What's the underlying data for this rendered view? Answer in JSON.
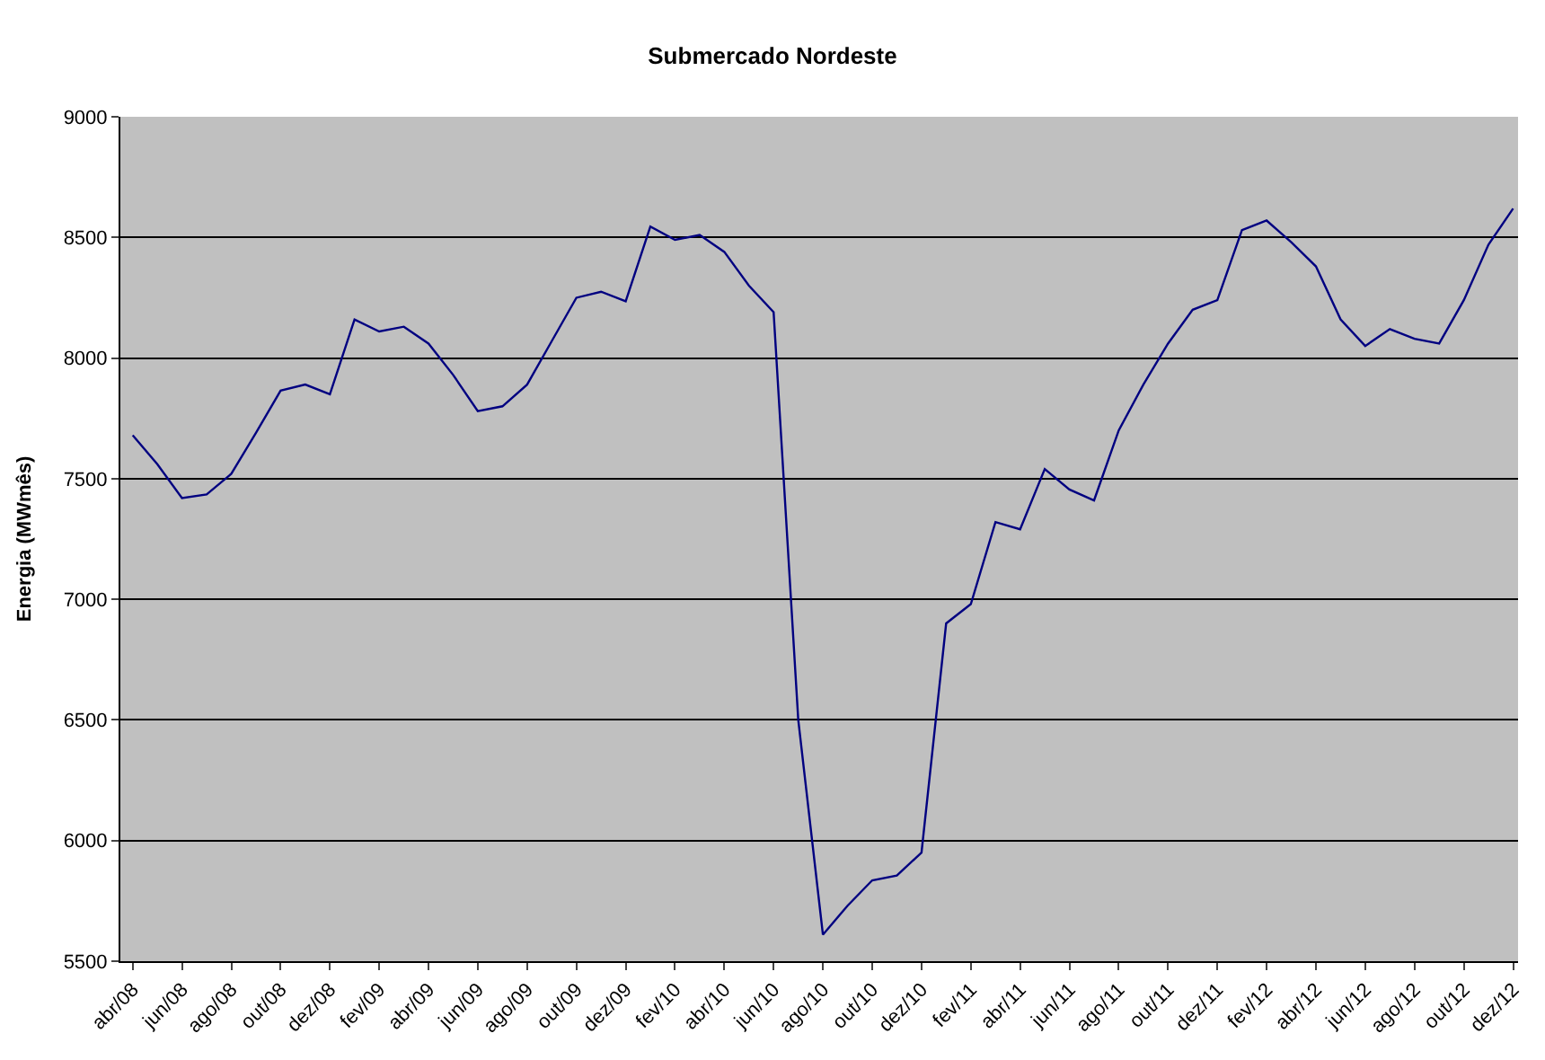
{
  "chart_data": {
    "type": "line",
    "title": "Submercado Nordeste",
    "ylabel": "Energia (MWmês)",
    "categories": [
      "abr/08",
      null,
      "jun/08",
      null,
      "ago/08",
      null,
      "out/08",
      null,
      "dez/08",
      null,
      "fev/09",
      null,
      "abr/09",
      null,
      "jun/09",
      null,
      "ago/09",
      null,
      "out/09",
      null,
      "dez/09",
      null,
      "fev/10",
      null,
      "abr/10",
      null,
      "jun/10",
      null,
      "ago/10",
      null,
      "out/10",
      null,
      "dez/10",
      null,
      "fev/11",
      null,
      "abr/11",
      null,
      "jun/11",
      null,
      "ago/11",
      null,
      "out/11",
      null,
      "dez/11",
      null,
      "fev/12",
      null,
      "abr/12",
      null,
      "jun/12",
      null,
      "ago/12",
      null,
      "out/12",
      null,
      "dez/12"
    ],
    "series": [
      {
        "color": "#000080",
        "values": [
          7680,
          7560,
          7420,
          7435,
          7520,
          7690,
          7865,
          7890,
          7850,
          8160,
          8110,
          8130,
          8060,
          7930,
          7780,
          7800,
          7890,
          8070,
          8250,
          8275,
          8235,
          8545,
          8490,
          8510,
          8440,
          8300,
          8190,
          6500,
          5610,
          5730,
          5835,
          5855,
          5950,
          6900,
          6980,
          7320,
          7290,
          7540,
          7455,
          7410,
          7700,
          7890,
          8060,
          8200,
          8240,
          8530,
          8570,
          8480,
          8380,
          8160,
          8050,
          8120,
          8080,
          8060,
          8240,
          8470,
          8620
        ]
      }
    ],
    "ylim": [
      5500,
      9000
    ],
    "yticks": [
      5500,
      6000,
      6500,
      7000,
      7500,
      8000,
      8500,
      9000
    ],
    "grid": "y",
    "legend": false,
    "marker": "none",
    "line_style": "solid"
  }
}
